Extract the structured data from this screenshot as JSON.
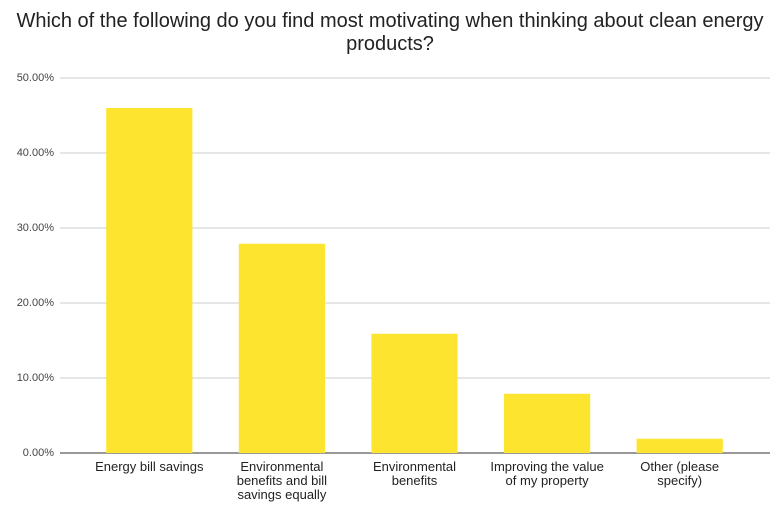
{
  "chart_data": {
    "type": "bar",
    "title": "Which of the following do you find most motivating when thinking about clean energy products?",
    "categories": [
      "Energy bill savings",
      "Environmental benefits and bill savings equally",
      "Environmental benefits",
      "Improving the value of my property",
      "Other (please specify)"
    ],
    "values": [
      46,
      27.9,
      15.9,
      7.9,
      1.9
    ],
    "color": "#fde52f",
    "ylim": [
      0,
      50
    ],
    "yticks": [
      {
        "value": 0,
        "label": "0.00%"
      },
      {
        "value": 10,
        "label": "10.00%"
      },
      {
        "value": 20,
        "label": "20.00%"
      },
      {
        "value": 30,
        "label": "30.00%"
      },
      {
        "value": 40,
        "label": "40.00%"
      },
      {
        "value": 50,
        "label": "50.00%"
      }
    ],
    "grid": true
  }
}
